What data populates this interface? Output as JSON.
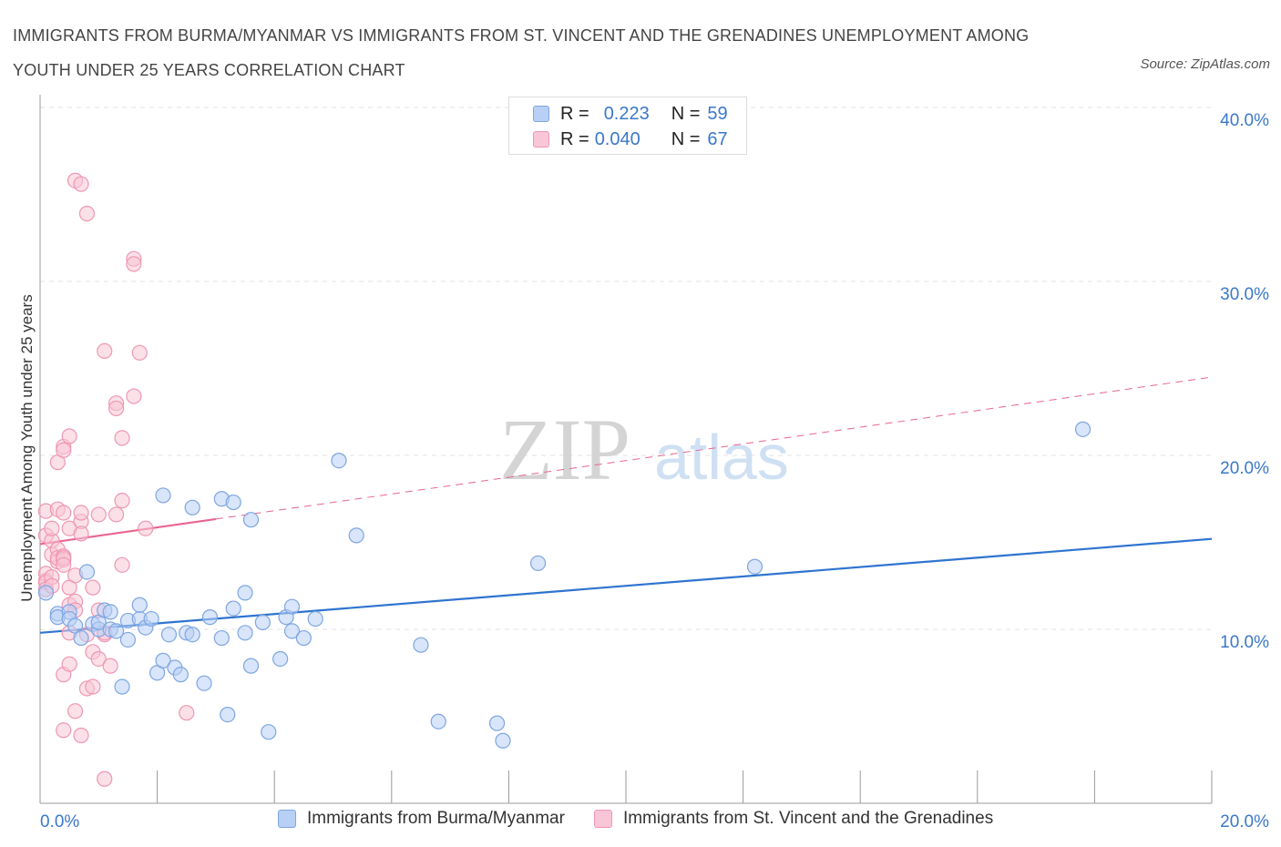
{
  "title": "IMMIGRANTS FROM BURMA/MYANMAR VS IMMIGRANTS FROM ST. VINCENT AND THE GRENADINES UNEMPLOYMENT AMONG YOUTH UNDER 25 YEARS CORRELATION CHART",
  "source": "Source: ZipAtlas.com",
  "watermark": {
    "zip": "ZIP",
    "atlas": "atlas"
  },
  "legend": {
    "r_label": "R =",
    "n_label": "N =",
    "series1": {
      "r": "0.223",
      "n": "59"
    },
    "series2": {
      "r": "0.040",
      "n": "67"
    }
  },
  "colors": {
    "blue_fill": "#b8d0f5",
    "blue_stroke": "#7ea6e0",
    "blue_line": "#2f74d0",
    "pink_fill": "#f8c6d6",
    "pink_stroke": "#ef97b3",
    "pink_line": "#e8668f",
    "axis_text": "#3a78c9",
    "grid": "#e3e3e3"
  },
  "chart_data": {
    "type": "scatter",
    "title": "IMMIGRANTS FROM BURMA/MYANMAR VS IMMIGRANTS FROM ST. VINCENT AND THE GRENADINES UNEMPLOYMENT AMONG YOUTH UNDER 25 YEARS CORRELATION CHART",
    "xlabel": "",
    "ylabel": "Unemployment Among Youth under 25 years",
    "xlim": [
      0,
      20
    ],
    "ylim": [
      0,
      40
    ],
    "x_ticks": [
      "0.0%",
      "20.0%"
    ],
    "y_ticks": [
      "10.0%",
      "20.0%",
      "30.0%",
      "40.0%"
    ],
    "grid": true,
    "legend_position": "top-center",
    "series": [
      {
        "name": "Immigrants from Burma/Myanmar",
        "color": "#b8d0f5",
        "trend": {
          "x": [
            0,
            20
          ],
          "y": [
            9.8,
            15.2
          ],
          "style": "solid"
        },
        "points": [
          [
            0.1,
            12.1
          ],
          [
            0.3,
            10.9
          ],
          [
            0.3,
            10.7
          ],
          [
            0.5,
            11.0
          ],
          [
            0.5,
            10.6
          ],
          [
            0.6,
            10.2
          ],
          [
            0.7,
            9.5
          ],
          [
            0.8,
            13.3
          ],
          [
            0.9,
            10.3
          ],
          [
            1.0,
            10.0
          ],
          [
            1.0,
            10.4
          ],
          [
            1.1,
            11.1
          ],
          [
            1.2,
            10.0
          ],
          [
            1.2,
            11.0
          ],
          [
            1.3,
            9.9
          ],
          [
            1.4,
            6.7
          ],
          [
            1.5,
            9.4
          ],
          [
            1.5,
            10.5
          ],
          [
            1.7,
            10.6
          ],
          [
            1.7,
            11.4
          ],
          [
            1.8,
            10.1
          ],
          [
            1.9,
            10.6
          ],
          [
            2.0,
            7.5
          ],
          [
            2.1,
            8.2
          ],
          [
            2.1,
            17.7
          ],
          [
            2.2,
            9.7
          ],
          [
            2.3,
            7.8
          ],
          [
            2.4,
            7.4
          ],
          [
            2.5,
            9.8
          ],
          [
            2.6,
            9.7
          ],
          [
            2.6,
            17.0
          ],
          [
            2.8,
            6.9
          ],
          [
            2.9,
            10.7
          ],
          [
            3.1,
            17.5
          ],
          [
            3.1,
            9.5
          ],
          [
            3.2,
            5.1
          ],
          [
            3.3,
            17.3
          ],
          [
            3.3,
            11.2
          ],
          [
            3.5,
            9.8
          ],
          [
            3.5,
            12.1
          ],
          [
            3.6,
            16.3
          ],
          [
            3.6,
            7.9
          ],
          [
            3.8,
            10.4
          ],
          [
            3.9,
            4.1
          ],
          [
            4.1,
            8.3
          ],
          [
            4.2,
            10.7
          ],
          [
            4.3,
            9.9
          ],
          [
            4.3,
            11.3
          ],
          [
            4.5,
            9.5
          ],
          [
            4.7,
            10.6
          ],
          [
            5.1,
            19.7
          ],
          [
            5.4,
            15.4
          ],
          [
            6.5,
            9.1
          ],
          [
            6.8,
            4.7
          ],
          [
            7.8,
            4.6
          ],
          [
            7.9,
            3.6
          ],
          [
            8.5,
            13.8
          ],
          [
            12.2,
            13.6
          ],
          [
            17.8,
            21.5
          ]
        ]
      },
      {
        "name": "Immigrants from St. Vincent and the Grenadines",
        "color": "#f8c6d6",
        "trend": {
          "x": [
            0,
            20
          ],
          "y": [
            14.9,
            24.5
          ],
          "style": "solid 0-3, dashed 3-20"
        },
        "points": [
          [
            0.1,
            12.8
          ],
          [
            0.1,
            13.2
          ],
          [
            0.1,
            12.7
          ],
          [
            0.1,
            15.4
          ],
          [
            0.1,
            16.8
          ],
          [
            0.1,
            12.3
          ],
          [
            0.2,
            14.3
          ],
          [
            0.2,
            15.1
          ],
          [
            0.2,
            13.0
          ],
          [
            0.2,
            12.5
          ],
          [
            0.2,
            15.8
          ],
          [
            0.3,
            19.6
          ],
          [
            0.3,
            14.6
          ],
          [
            0.3,
            13.9
          ],
          [
            0.3,
            16.9
          ],
          [
            0.3,
            14.1
          ],
          [
            0.4,
            14.2
          ],
          [
            0.4,
            16.7
          ],
          [
            0.4,
            14.0
          ],
          [
            0.4,
            20.5
          ],
          [
            0.4,
            20.3
          ],
          [
            0.4,
            14.1
          ],
          [
            0.4,
            13.7
          ],
          [
            0.4,
            7.4
          ],
          [
            0.4,
            4.2
          ],
          [
            0.5,
            21.1
          ],
          [
            0.5,
            15.8
          ],
          [
            0.5,
            12.4
          ],
          [
            0.5,
            8.0
          ],
          [
            0.5,
            9.8
          ],
          [
            0.5,
            11.4
          ],
          [
            0.6,
            5.3
          ],
          [
            0.6,
            13.1
          ],
          [
            0.6,
            11.6
          ],
          [
            0.6,
            35.8
          ],
          [
            0.6,
            11.1
          ],
          [
            0.7,
            16.2
          ],
          [
            0.7,
            15.5
          ],
          [
            0.7,
            16.7
          ],
          [
            0.7,
            3.9
          ],
          [
            0.7,
            35.6
          ],
          [
            0.8,
            6.6
          ],
          [
            0.8,
            9.7
          ],
          [
            0.8,
            33.9
          ],
          [
            0.9,
            12.4
          ],
          [
            0.9,
            8.7
          ],
          [
            0.9,
            6.7
          ],
          [
            1.0,
            8.3
          ],
          [
            1.0,
            11.1
          ],
          [
            1.0,
            16.6
          ],
          [
            1.1,
            9.7
          ],
          [
            1.1,
            9.8
          ],
          [
            1.1,
            26.0
          ],
          [
            1.1,
            1.4
          ],
          [
            1.2,
            7.9
          ],
          [
            1.3,
            23.0
          ],
          [
            1.3,
            16.6
          ],
          [
            1.3,
            22.7
          ],
          [
            1.4,
            17.4
          ],
          [
            1.4,
            13.7
          ],
          [
            1.4,
            21.0
          ],
          [
            1.6,
            23.4
          ],
          [
            1.6,
            31.3
          ],
          [
            1.6,
            31.0
          ],
          [
            1.7,
            25.9
          ],
          [
            1.8,
            15.8
          ],
          [
            2.5,
            5.2
          ]
        ]
      }
    ]
  },
  "bottom_legend": {
    "series1": "Immigrants from Burma/Myanmar",
    "series2": "Immigrants from St. Vincent and the Grenadines"
  }
}
